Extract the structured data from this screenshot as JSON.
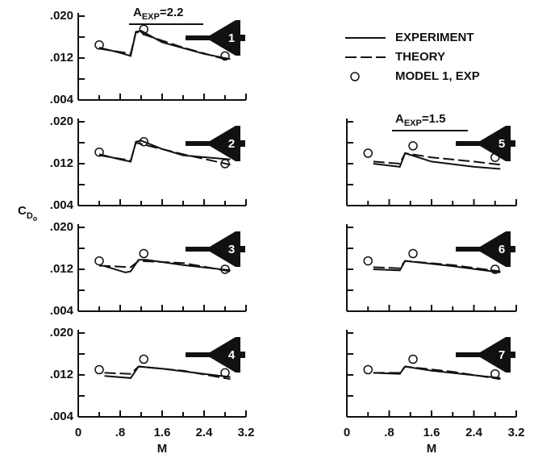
{
  "chart_data": {
    "type": "line",
    "y_label": {
      "base": "C",
      "sub": "D",
      "subsub": "o"
    },
    "x_label": "M",
    "xlim": [
      0,
      3.2
    ],
    "xticks": [
      0,
      {
        "value": 0.8,
        "label": ".8"
      },
      1.6,
      2.4,
      3.2
    ],
    "xminorticks": [
      0.4,
      1.2,
      2.0,
      2.8
    ],
    "ylim": [
      0.004,
      0.02
    ],
    "yticks": [
      {
        "value": 0.02,
        "label": ".020"
      },
      {
        "value": 0.012,
        "label": ".012"
      },
      {
        "value": 0.004,
        "label": ".004"
      }
    ],
    "yminorticks": [
      0.016,
      0.008
    ],
    "color": "#111111",
    "annotations": [
      {
        "base": "A",
        "sub": "EXP",
        "rest": "=2.2"
      },
      {
        "base": "A",
        "sub": "EXP",
        "rest": "=1.5"
      }
    ],
    "panels": [
      {
        "label": "1",
        "series": [
          {
            "name": "EXPERIMENT",
            "x": [
              0.4,
              0.8,
              1.0,
              1.1,
              1.2,
              1.6,
              2.4,
              2.9
            ],
            "values": [
              0.014,
              0.013,
              0.0124,
              0.017,
              0.0172,
              0.015,
              0.0128,
              0.0118
            ]
          },
          {
            "name": "THEORY",
            "dash": true,
            "x": [
              0.4,
              0.9,
              1.0,
              1.1,
              2.0,
              2.9
            ],
            "values": [
              0.0138,
              0.013,
              0.0128,
              0.017,
              0.014,
              0.0115
            ]
          },
          {
            "name": "MODEL 1, EXP",
            "marker": "circle",
            "x": [
              0.4,
              1.25,
              2.8
            ],
            "values": [
              0.0145,
              0.0175,
              0.0124
            ]
          }
        ]
      },
      {
        "label": "2",
        "series": [
          {
            "x": [
              0.4,
              0.8,
              1.0,
              1.1,
              1.2,
              1.6,
              2.0,
              2.9
            ],
            "values": [
              0.0138,
              0.0128,
              0.0124,
              0.0162,
              0.0164,
              0.0148,
              0.0136,
              0.0128
            ]
          },
          {
            "dash": true,
            "x": [
              0.4,
              1.0,
              1.1,
              2.0,
              2.9
            ],
            "values": [
              0.0136,
              0.0126,
              0.016,
              0.0138,
              0.0118
            ]
          },
          {
            "marker": "circle",
            "x": [
              0.4,
              1.25,
              2.8
            ],
            "values": [
              0.0142,
              0.0162,
              0.012
            ]
          }
        ]
      },
      {
        "label": "3",
        "series": [
          {
            "x": [
              0.5,
              0.9,
              1.0,
              1.15,
              1.3,
              2.0,
              2.9
            ],
            "values": [
              0.0126,
              0.0114,
              0.0116,
              0.0138,
              0.0138,
              0.0128,
              0.0118
            ]
          },
          {
            "dash": true,
            "x": [
              0.4,
              1.0,
              1.15,
              2.0,
              2.9
            ],
            "values": [
              0.0127,
              0.0124,
              0.0136,
              0.0132,
              0.0116
            ]
          },
          {
            "marker": "circle",
            "x": [
              0.4,
              1.25,
              2.8
            ],
            "values": [
              0.0136,
              0.015,
              0.012
            ]
          }
        ]
      },
      {
        "label": "4",
        "series": [
          {
            "x": [
              0.5,
              1.0,
              1.15,
              1.6,
              2.4,
              2.9
            ],
            "values": [
              0.0118,
              0.0114,
              0.0136,
              0.0132,
              0.0122,
              0.0116
            ]
          },
          {
            "dash": true,
            "x": [
              0.5,
              1.0,
              1.15,
              2.0,
              2.9
            ],
            "values": [
              0.0124,
              0.0122,
              0.0136,
              0.0128,
              0.0112
            ]
          },
          {
            "marker": "circle",
            "x": [
              0.4,
              1.25,
              2.8
            ],
            "values": [
              0.013,
              0.015,
              0.0124
            ]
          }
        ]
      },
      {
        "label": "5",
        "series": [
          {
            "x": [
              0.5,
              1.0,
              1.1,
              1.6,
              2.4,
              2.9
            ],
            "values": [
              0.012,
              0.0114,
              0.014,
              0.0124,
              0.0114,
              0.011
            ]
          },
          {
            "dash": true,
            "x": [
              0.5,
              1.0,
              1.1,
              1.6,
              2.4,
              2.9
            ],
            "values": [
              0.0124,
              0.012,
              0.014,
              0.0132,
              0.0124,
              0.0118
            ]
          },
          {
            "marker": "circle",
            "x": [
              0.4,
              1.25,
              2.8
            ],
            "values": [
              0.014,
              0.0154,
              0.0132
            ]
          }
        ]
      },
      {
        "label": "6",
        "series": [
          {
            "x": [
              0.5,
              1.0,
              1.1,
              2.0,
              2.9
            ],
            "values": [
              0.012,
              0.0118,
              0.0136,
              0.0126,
              0.0114
            ]
          },
          {
            "dash": true,
            "x": [
              0.5,
              1.0,
              1.1,
              2.0,
              2.9
            ],
            "values": [
              0.0124,
              0.0122,
              0.0136,
              0.0128,
              0.0116
            ]
          },
          {
            "marker": "circle",
            "x": [
              0.4,
              1.25,
              2.8
            ],
            "values": [
              0.0136,
              0.015,
              0.012
            ]
          }
        ]
      },
      {
        "label": "7",
        "series": [
          {
            "x": [
              0.5,
              1.0,
              1.1,
              1.6,
              2.9
            ],
            "values": [
              0.0124,
              0.0122,
              0.0136,
              0.0128,
              0.0114
            ]
          },
          {
            "dash": true,
            "x": [
              0.5,
              1.0,
              1.1,
              2.0,
              2.9
            ],
            "values": [
              0.0124,
              0.0124,
              0.0136,
              0.0126,
              0.0112
            ]
          },
          {
            "marker": "circle",
            "x": [
              0.4,
              1.25,
              2.8
            ],
            "values": [
              0.013,
              0.015,
              0.0122
            ]
          }
        ]
      }
    ]
  }
}
